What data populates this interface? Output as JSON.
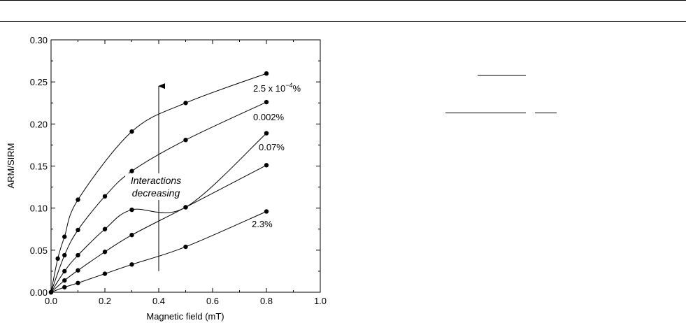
{
  "colors": {
    "ink": "#000000",
    "background": "#ffffff"
  },
  "chart_data": {
    "type": "line",
    "xlabel": "Magnetic field (mT)",
    "ylabel": "ARM/SIRM",
    "xlim": [
      0.0,
      1.0
    ],
    "ylim": [
      0.0,
      0.3
    ],
    "xticks": [
      "0.0",
      "0.2",
      "0.4",
      "0.6",
      "0.8",
      "1.0"
    ],
    "yticks": [
      "0.00",
      "0.05",
      "0.10",
      "0.15",
      "0.20",
      "0.25",
      "0.30"
    ],
    "grid": false,
    "legend": "none",
    "series": [
      {
        "label_base": "2.5 x 10",
        "label_exp": "−4",
        "label_suffix": "%",
        "x": [
          0,
          0.025,
          0.05,
          0.1,
          0.3,
          0.5,
          0.8
        ],
        "y": [
          0,
          0.04,
          0.066,
          0.11,
          0.191,
          0.225,
          0.26
        ]
      },
      {
        "label": "0.002%",
        "x": [
          0,
          0.05,
          0.1,
          0.2,
          0.3,
          0.5,
          0.8
        ],
        "y": [
          0,
          0.044,
          0.074,
          0.114,
          0.144,
          0.181,
          0.226
        ]
      },
      {
        "label": "0.07%",
        "x": [
          0,
          0.05,
          0.1,
          0.2,
          0.3,
          0.5,
          0.8
        ],
        "y": [
          0,
          0.025,
          0.044,
          0.075,
          0.098,
          0.101,
          0.189
        ]
      },
      {
        "x": [
          0,
          0.05,
          0.1,
          0.2,
          0.3,
          0.5,
          0.8
        ],
        "y": [
          0,
          0.014,
          0.026,
          0.048,
          0.068,
          0.101,
          0.151
        ]
      },
      {
        "label": "2.3%",
        "x": [
          0,
          0.05,
          0.1,
          0.2,
          0.3,
          0.5,
          0.8
        ],
        "y": [
          0,
          0.006,
          0.011,
          0.022,
          0.033,
          0.054,
          0.096
        ]
      }
    ],
    "annotation": {
      "line1": "Interactions",
      "line2": "decreasing",
      "x": 0.4,
      "y_from": 0.025,
      "y_to": 0.245
    }
  }
}
